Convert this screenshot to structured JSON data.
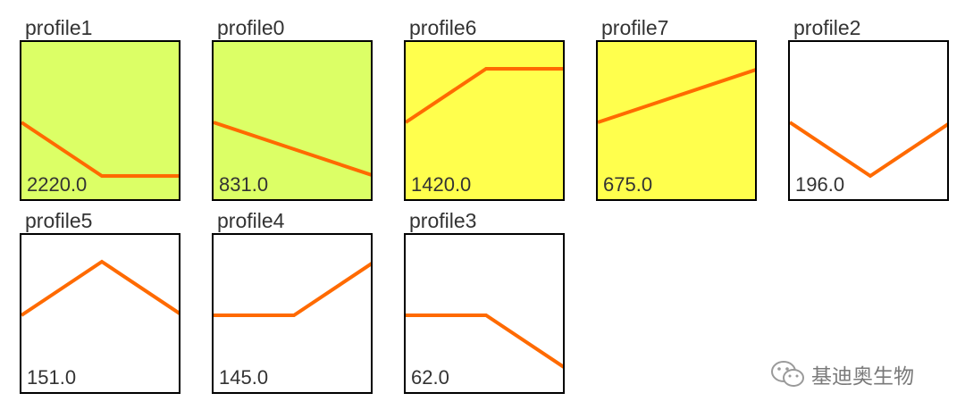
{
  "chart_data": {
    "type": "line",
    "panels": [
      {
        "title": "profile1",
        "count": "2220.0",
        "bg": "#dcff66",
        "values": [
          0,
          -1,
          -1
        ]
      },
      {
        "title": "profile0",
        "count": "831.0",
        "bg": "#dcff66",
        "values": [
          0,
          -0.5,
          -1
        ]
      },
      {
        "title": "profile6",
        "count": "1420.0",
        "bg": "#ffff4d",
        "values": [
          0,
          1,
          1
        ]
      },
      {
        "title": "profile7",
        "count": "675.0",
        "bg": "#ffff4d",
        "values": [
          0,
          0.5,
          1
        ]
      },
      {
        "title": "profile2",
        "count": "196.0",
        "bg": "#ffffff",
        "values": [
          0,
          -1,
          0
        ]
      },
      {
        "title": "profile5",
        "count": "151.0",
        "bg": "#ffffff",
        "values": [
          0,
          1,
          0
        ]
      },
      {
        "title": "profile4",
        "count": "145.0",
        "bg": "#ffffff",
        "values": [
          0,
          0,
          1
        ]
      },
      {
        "title": "profile3",
        "count": "62.0",
        "bg": "#ffffff",
        "values": [
          0,
          0,
          -1
        ]
      }
    ],
    "ylim": [
      -1.5,
      1.5
    ],
    "line_color": "#ff6a00"
  },
  "watermark": {
    "text": "基迪奥生物",
    "icon": "wechat-icon"
  }
}
